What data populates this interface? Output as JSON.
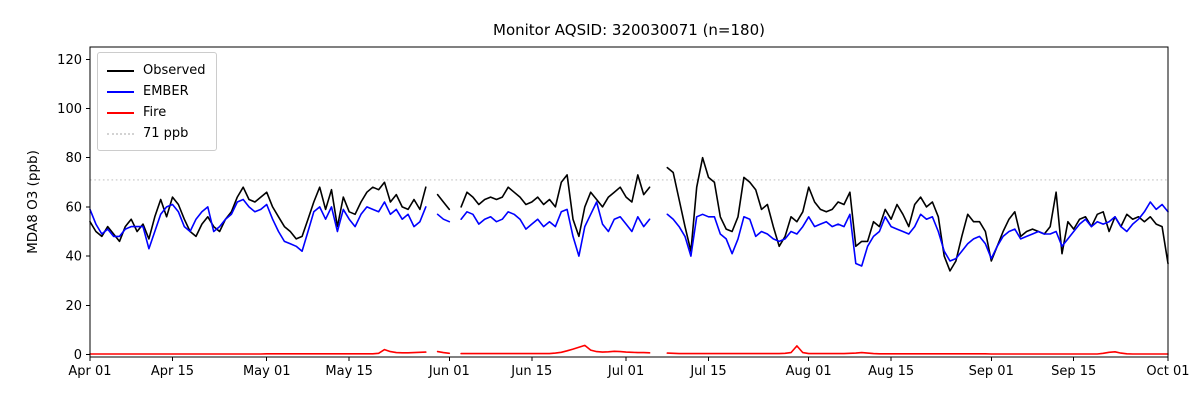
{
  "chart_data": {
    "type": "line",
    "title": "Monitor AQSID: 320030071 (n=180)",
    "xlabel": "",
    "ylabel": "MDA8 O3 (ppb)",
    "ylim": [
      -1,
      125
    ],
    "grid": false,
    "legend_position": "upper-left",
    "x_unit": "daily values, Apr 01 through Oct 01",
    "x_ticks": [
      {
        "day": 0,
        "label": "Apr 01"
      },
      {
        "day": 14,
        "label": "Apr 15"
      },
      {
        "day": 30,
        "label": "May 01"
      },
      {
        "day": 44,
        "label": "May 15"
      },
      {
        "day": 61,
        "label": "Jun 01"
      },
      {
        "day": 75,
        "label": "Jun 15"
      },
      {
        "day": 91,
        "label": "Jul 01"
      },
      {
        "day": 105,
        "label": "Jul 15"
      },
      {
        "day": 122,
        "label": "Aug 01"
      },
      {
        "day": 136,
        "label": "Aug 15"
      },
      {
        "day": 153,
        "label": "Sep 01"
      },
      {
        "day": 167,
        "label": "Sep 15"
      },
      {
        "day": 183,
        "label": "Oct 01"
      }
    ],
    "y_ticks": [
      0,
      20,
      40,
      60,
      80,
      100,
      120
    ],
    "threshold": {
      "value": 71,
      "label": "71 ppb",
      "color": "#d3d3d3",
      "style": "dotted"
    },
    "series": [
      {
        "name": "Observed",
        "color": "#000000",
        "style": "solid",
        "values": [
          54,
          50,
          48,
          52,
          49,
          46,
          52,
          55,
          50,
          53,
          47,
          56,
          63,
          56,
          64,
          61,
          55,
          50,
          48,
          53,
          56,
          52,
          50,
          55,
          58,
          64,
          68,
          63,
          62,
          64,
          66,
          60,
          56,
          52,
          50,
          47,
          48,
          55,
          62,
          68,
          59,
          67,
          52,
          64,
          58,
          57,
          62,
          66,
          68,
          67,
          70,
          62,
          65,
          60,
          59,
          63,
          59,
          68,
          null,
          65,
          62,
          59,
          null,
          60,
          66,
          64,
          61,
          63,
          64,
          63,
          64,
          68,
          66,
          64,
          61,
          62,
          64,
          61,
          63,
          60,
          70,
          73,
          55,
          48,
          60,
          66,
          63,
          60,
          64,
          66,
          68,
          64,
          62,
          73,
          65,
          68,
          null,
          null,
          76,
          74,
          63,
          52,
          42,
          68,
          80,
          72,
          70,
          56,
          51,
          50,
          56,
          72,
          70,
          67,
          59,
          61,
          52,
          44,
          48,
          56,
          54,
          58,
          68,
          62,
          59,
          58,
          59,
          62,
          61,
          66,
          44,
          46,
          46,
          54,
          52,
          59,
          55,
          61,
          57,
          52,
          61,
          64,
          60,
          62,
          56,
          40,
          34,
          38,
          48,
          57,
          54,
          54,
          50,
          38,
          44,
          50,
          55,
          58,
          48,
          50,
          51,
          50,
          49,
          52,
          66,
          41,
          54,
          51,
          55,
          56,
          52,
          57,
          58,
          50,
          56,
          52,
          57,
          55,
          56,
          54,
          56,
          53,
          52,
          37
        ]
      },
      {
        "name": "EMBER",
        "color": "#0000ff",
        "style": "solid",
        "values": [
          59,
          53,
          49,
          51,
          48,
          48,
          51,
          52,
          52,
          52,
          43,
          50,
          57,
          60,
          61,
          58,
          52,
          50,
          55,
          58,
          60,
          50,
          52,
          55,
          57,
          62,
          63,
          60,
          58,
          59,
          61,
          55,
          50,
          46,
          45,
          44,
          42,
          50,
          58,
          60,
          55,
          60,
          50,
          59,
          55,
          52,
          57,
          60,
          59,
          58,
          62,
          57,
          59,
          55,
          57,
          52,
          54,
          60,
          null,
          57,
          55,
          54,
          null,
          55,
          58,
          57,
          53,
          55,
          56,
          54,
          55,
          58,
          57,
          55,
          51,
          53,
          55,
          52,
          54,
          52,
          58,
          59,
          48,
          40,
          52,
          57,
          62,
          53,
          50,
          55,
          56,
          53,
          50,
          56,
          52,
          55,
          null,
          null,
          57,
          55,
          52,
          48,
          40,
          56,
          57,
          56,
          56,
          49,
          47,
          41,
          47,
          56,
          55,
          48,
          50,
          49,
          47,
          46,
          47,
          50,
          49,
          52,
          56,
          52,
          53,
          54,
          52,
          53,
          52,
          57,
          37,
          36,
          44,
          48,
          50,
          56,
          52,
          51,
          50,
          49,
          52,
          57,
          55,
          56,
          50,
          42,
          38,
          39,
          42,
          45,
          47,
          48,
          45,
          39,
          44,
          48,
          50,
          51,
          47,
          48,
          49,
          50,
          49,
          49,
          50,
          44,
          47,
          50,
          53,
          55,
          52,
          54,
          53,
          54,
          56,
          52,
          50,
          53,
          55,
          58,
          62,
          59,
          61,
          58
        ]
      },
      {
        "name": "Fire",
        "color": "#ff0000",
        "style": "solid",
        "values": [
          0.2,
          0.2,
          0.2,
          0.2,
          0.2,
          0.2,
          0.2,
          0.2,
          0.2,
          0.2,
          0.2,
          0.2,
          0.2,
          0.2,
          0.2,
          0.2,
          0.2,
          0.2,
          0.2,
          0.2,
          0.2,
          0.2,
          0.2,
          0.2,
          0.2,
          0.2,
          0.2,
          0.2,
          0.2,
          0.2,
          0.3,
          0.3,
          0.3,
          0.3,
          0.3,
          0.3,
          0.3,
          0.3,
          0.3,
          0.3,
          0.3,
          0.3,
          0.3,
          0.3,
          0.3,
          0.3,
          0.3,
          0.3,
          0.3,
          0.5,
          2,
          1.2,
          0.8,
          0.7,
          0.7,
          0.8,
          0.9,
          1,
          null,
          1.2,
          0.8,
          0.5,
          null,
          0.4,
          0.4,
          0.4,
          0.4,
          0.4,
          0.4,
          0.4,
          0.4,
          0.4,
          0.4,
          0.4,
          0.4,
          0.4,
          0.4,
          0.4,
          0.4,
          0.6,
          0.9,
          1.5,
          2.2,
          3,
          3.7,
          1.8,
          1.2,
          1,
          1.1,
          1.3,
          1.2,
          1,
          0.9,
          0.8,
          0.8,
          0.7,
          null,
          null,
          0.6,
          0.5,
          0.4,
          0.4,
          0.4,
          0.4,
          0.4,
          0.4,
          0.4,
          0.4,
          0.4,
          0.4,
          0.4,
          0.4,
          0.4,
          0.4,
          0.4,
          0.4,
          0.4,
          0.4,
          0.5,
          0.8,
          3.5,
          0.8,
          0.4,
          0.4,
          0.4,
          0.4,
          0.4,
          0.4,
          0.4,
          0.5,
          0.6,
          0.8,
          0.6,
          0.4,
          0.3,
          0.3,
          0.3,
          0.3,
          0.3,
          0.3,
          0.3,
          0.3,
          0.3,
          0.3,
          0.3,
          0.3,
          0.3,
          0.3,
          0.3,
          0.3,
          0.3,
          0.3,
          0.3,
          0.2,
          0.2,
          0.2,
          0.2,
          0.2,
          0.2,
          0.2,
          0.2,
          0.2,
          0.2,
          0.2,
          0.2,
          0.2,
          0.2,
          0.2,
          0.2,
          0.2,
          0.2,
          0.2,
          0.5,
          0.9,
          1.1,
          0.6,
          0.3,
          0.2,
          0.2,
          0.2,
          0.2,
          0.2,
          0.2,
          0.2
        ]
      }
    ]
  },
  "legend": {
    "items": [
      {
        "label": "Observed",
        "color": "#000000",
        "style": "solid"
      },
      {
        "label": "EMBER",
        "color": "#0000ff",
        "style": "solid"
      },
      {
        "label": "Fire",
        "color": "#ff0000",
        "style": "solid"
      },
      {
        "label": "71 ppb",
        "color": "#d3d3d3",
        "style": "dotted"
      }
    ]
  }
}
